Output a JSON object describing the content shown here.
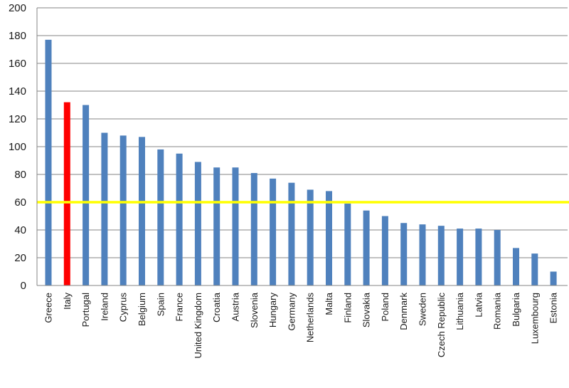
{
  "chart_data": {
    "type": "bar",
    "title": "",
    "xlabel": "",
    "ylabel": "",
    "ylim": [
      0,
      200
    ],
    "yticks": [
      "0",
      "20",
      "40",
      "60",
      "80",
      "100",
      "120",
      "140",
      "160",
      "180",
      "200"
    ],
    "grid": true,
    "legend": "none",
    "categories": [
      "Greece",
      "Italy",
      "Portugal",
      "Ireland",
      "Cyprus",
      "Belgium",
      "Spain",
      "France",
      "United Kingdom",
      "Croatia",
      "Austria",
      "Slovenia",
      "Hungary",
      "Germany",
      "Netherlands",
      "Malta",
      "Finland",
      "Slovakia",
      "Poland",
      "Denmark",
      "Sweden",
      "Czech Republic",
      "Lithuania",
      "Latvia",
      "Romania",
      "Bulgaria",
      "Luxembourg",
      "Estonia"
    ],
    "values": [
      177,
      132,
      130,
      110,
      108,
      107,
      98,
      95,
      89,
      85,
      85,
      81,
      77,
      74,
      69,
      68,
      59,
      54,
      50,
      45,
      44,
      43,
      41,
      41,
      40,
      27,
      23,
      10
    ],
    "bar_color": "#4f81bd",
    "highlight": {
      "category": "Italy",
      "color": "#ff0000"
    },
    "reference_line": {
      "value": 60,
      "color": "#ffff00"
    }
  }
}
